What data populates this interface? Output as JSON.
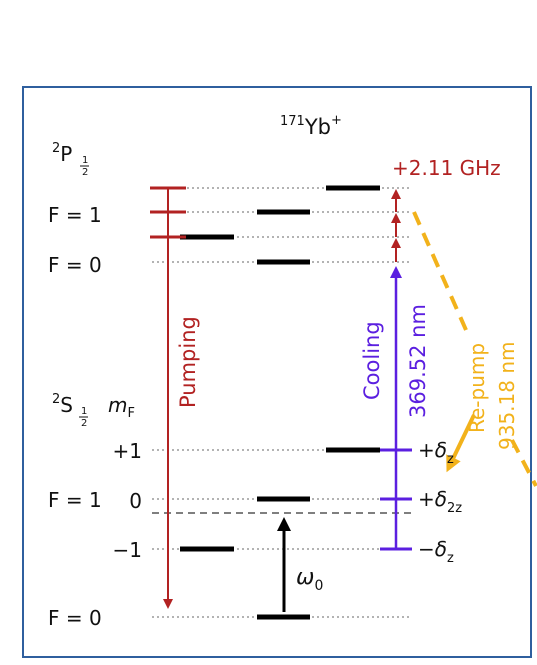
{
  "title": {
    "sup": "171",
    "base": "Yb",
    "charge": "+"
  },
  "states": {
    "p_half": {
      "sup": "2",
      "letter": "P"
    },
    "s_half": {
      "sup": "2",
      "letter": "S"
    },
    "j_num": "1",
    "j_den": "2",
    "f_p1": "F = 1",
    "f_p0": "F = 0",
    "f_s1": "F = 1",
    "f_s0": "F = 0",
    "mf_label": {
      "m": "m",
      "sub": "F"
    }
  },
  "mf_values": [
    "+1",
    "0",
    "−1"
  ],
  "splitting_label": "+2.11 GHz",
  "beams": {
    "pumping": "Pumping",
    "cooling": "Cooling",
    "cooling_wavelength": "369.52 nm",
    "repump": "Re-pump",
    "repump_wavelength": "935.18 nm"
  },
  "shifts": {
    "plus": {
      "sign": "+δ",
      "sub": "z"
    },
    "zero": {
      "sign": "+δ",
      "sub": "2z"
    },
    "minus": {
      "sign": "−δ",
      "sub": "z"
    }
  },
  "omega": {
    "symbol": "ω",
    "sub": "0"
  },
  "colors": {
    "frame": "#2f5f9e",
    "pumping": "#b22222",
    "cooling": "#5b1fe0",
    "repump": "#f2b21b",
    "level": "#000000",
    "guide": "#9a9a9a"
  }
}
